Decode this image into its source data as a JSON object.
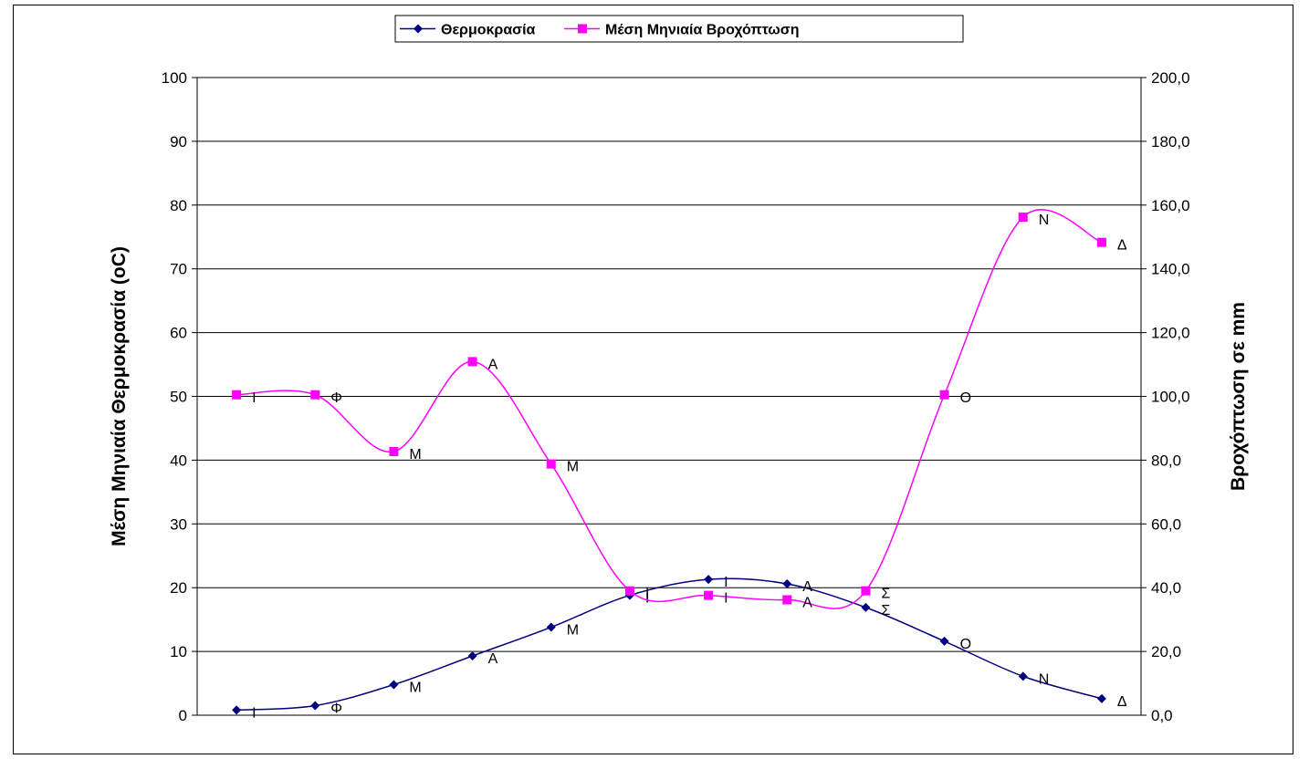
{
  "chart_data": {
    "type": "line",
    "categories": [
      "Ι",
      "Φ",
      "Μ",
      "Α",
      "Μ",
      "Ι",
      "Ι",
      "Α",
      "Σ",
      "Ο",
      "Ν",
      "Δ"
    ],
    "series": [
      {
        "name": "Θερμοκρασία",
        "axis": "left",
        "color": "#000080",
        "marker": "diamond",
        "values": [
          0.8,
          1.5,
          4.8,
          9.3,
          13.8,
          18.8,
          21.3,
          20.6,
          16.9,
          11.6,
          6.1,
          2.6
        ]
      },
      {
        "name": "Μέση Μηνιαία Βροχόπτωση",
        "axis": "right",
        "color": "#FF00FF",
        "marker": "square",
        "values": [
          100.5,
          100.5,
          82.7,
          110.9,
          78.8,
          39.0,
          37.6,
          36.2,
          39.0,
          100.5,
          156.2,
          148.3
        ]
      }
    ],
    "ylabel": "Μέση Μηνιαία Θερμοκρασία (oC)",
    "y2label": "Βροχόπτωση σε mm",
    "ylim": [
      0,
      100
    ],
    "y2lim": [
      0,
      200
    ],
    "yticks": [
      "0",
      "10",
      "20",
      "30",
      "40",
      "50",
      "60",
      "70",
      "80",
      "90",
      "100"
    ],
    "y2ticks": [
      "0,0",
      "20,0",
      "40,0",
      "60,0",
      "80,0",
      "100,0",
      "120,0",
      "140,0",
      "160,0",
      "180,0",
      "200,0"
    ],
    "grid": true,
    "legend": "top-center"
  }
}
